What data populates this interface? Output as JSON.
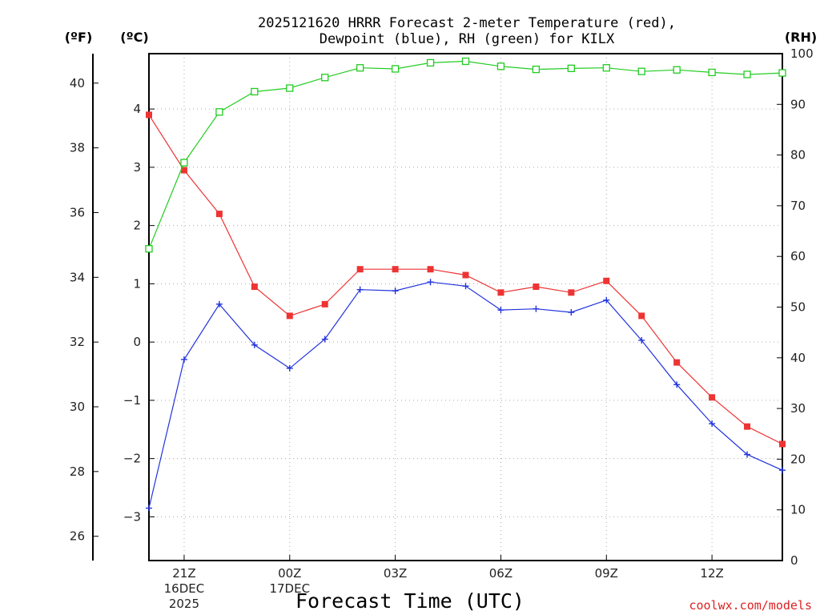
{
  "chart_data": {
    "type": "line",
    "title_line1": "2025121620 HRRR Forecast 2-meter Temperature (red),",
    "title_line2": "Dewpoint (blue), RH (green) for KILX",
    "unit_labels": {
      "fahrenheit": "(ºF)",
      "celsius": "(ºC)",
      "rh": "(RH)"
    },
    "xlabel": "Forecast Time (UTC)",
    "credit": "coolwx.com/models",
    "x_hours": [
      0,
      1,
      2,
      3,
      4,
      5,
      6,
      7,
      8,
      9,
      10,
      11,
      12,
      13,
      14,
      15,
      16,
      17,
      18
    ],
    "x_ticks": [
      {
        "hour": 1,
        "lines": [
          "21Z",
          "16DEC",
          "2025"
        ]
      },
      {
        "hour": 4,
        "lines": [
          "00Z",
          "17DEC"
        ]
      },
      {
        "hour": 7,
        "lines": [
          "03Z"
        ]
      },
      {
        "hour": 10,
        "lines": [
          "06Z"
        ]
      },
      {
        "hour": 13,
        "lines": [
          "09Z"
        ]
      },
      {
        "hour": 16,
        "lines": [
          "12Z"
        ]
      }
    ],
    "celsius_axis": {
      "range": [
        -3.75,
        4.95
      ],
      "ticks": [
        -3,
        -2,
        -1,
        0,
        1,
        2,
        3,
        4
      ]
    },
    "fahrenheit_axis": {
      "ticks": [
        26,
        28,
        30,
        32,
        34,
        36,
        38,
        40
      ]
    },
    "rh_axis": {
      "range": [
        0,
        100
      ],
      "ticks": [
        0,
        10,
        20,
        30,
        40,
        50,
        60,
        70,
        80,
        90,
        100
      ]
    },
    "series": [
      {
        "name": "Temperature",
        "color": "#ee3333",
        "marker": "filled-square",
        "axis": "celsius",
        "values": [
          3.9,
          2.95,
          2.2,
          0.95,
          0.45,
          0.65,
          1.25,
          1.25,
          1.25,
          1.15,
          0.85,
          0.95,
          0.85,
          1.05,
          0.45,
          -0.35,
          -0.95,
          -1.45,
          -1.75
        ]
      },
      {
        "name": "Dewpoint",
        "color": "#2233dd",
        "marker": "plus",
        "axis": "celsius",
        "values": [
          -2.85,
          -0.3,
          0.65,
          -0.05,
          -0.45,
          0.05,
          0.9,
          0.88,
          1.03,
          0.96,
          0.55,
          0.57,
          0.51,
          0.72,
          0.03,
          -0.73,
          -1.4,
          -1.93,
          -2.2
        ]
      },
      {
        "name": "RH",
        "color": "#22cc22",
        "marker": "open-square",
        "axis": "rh",
        "values": [
          61.5,
          78.5,
          88.5,
          92.5,
          93.2,
          95.3,
          97.2,
          97.0,
          98.2,
          98.5,
          97.5,
          96.9,
          97.1,
          97.2,
          96.5,
          96.8,
          96.3,
          95.9,
          96.2
        ]
      }
    ]
  }
}
